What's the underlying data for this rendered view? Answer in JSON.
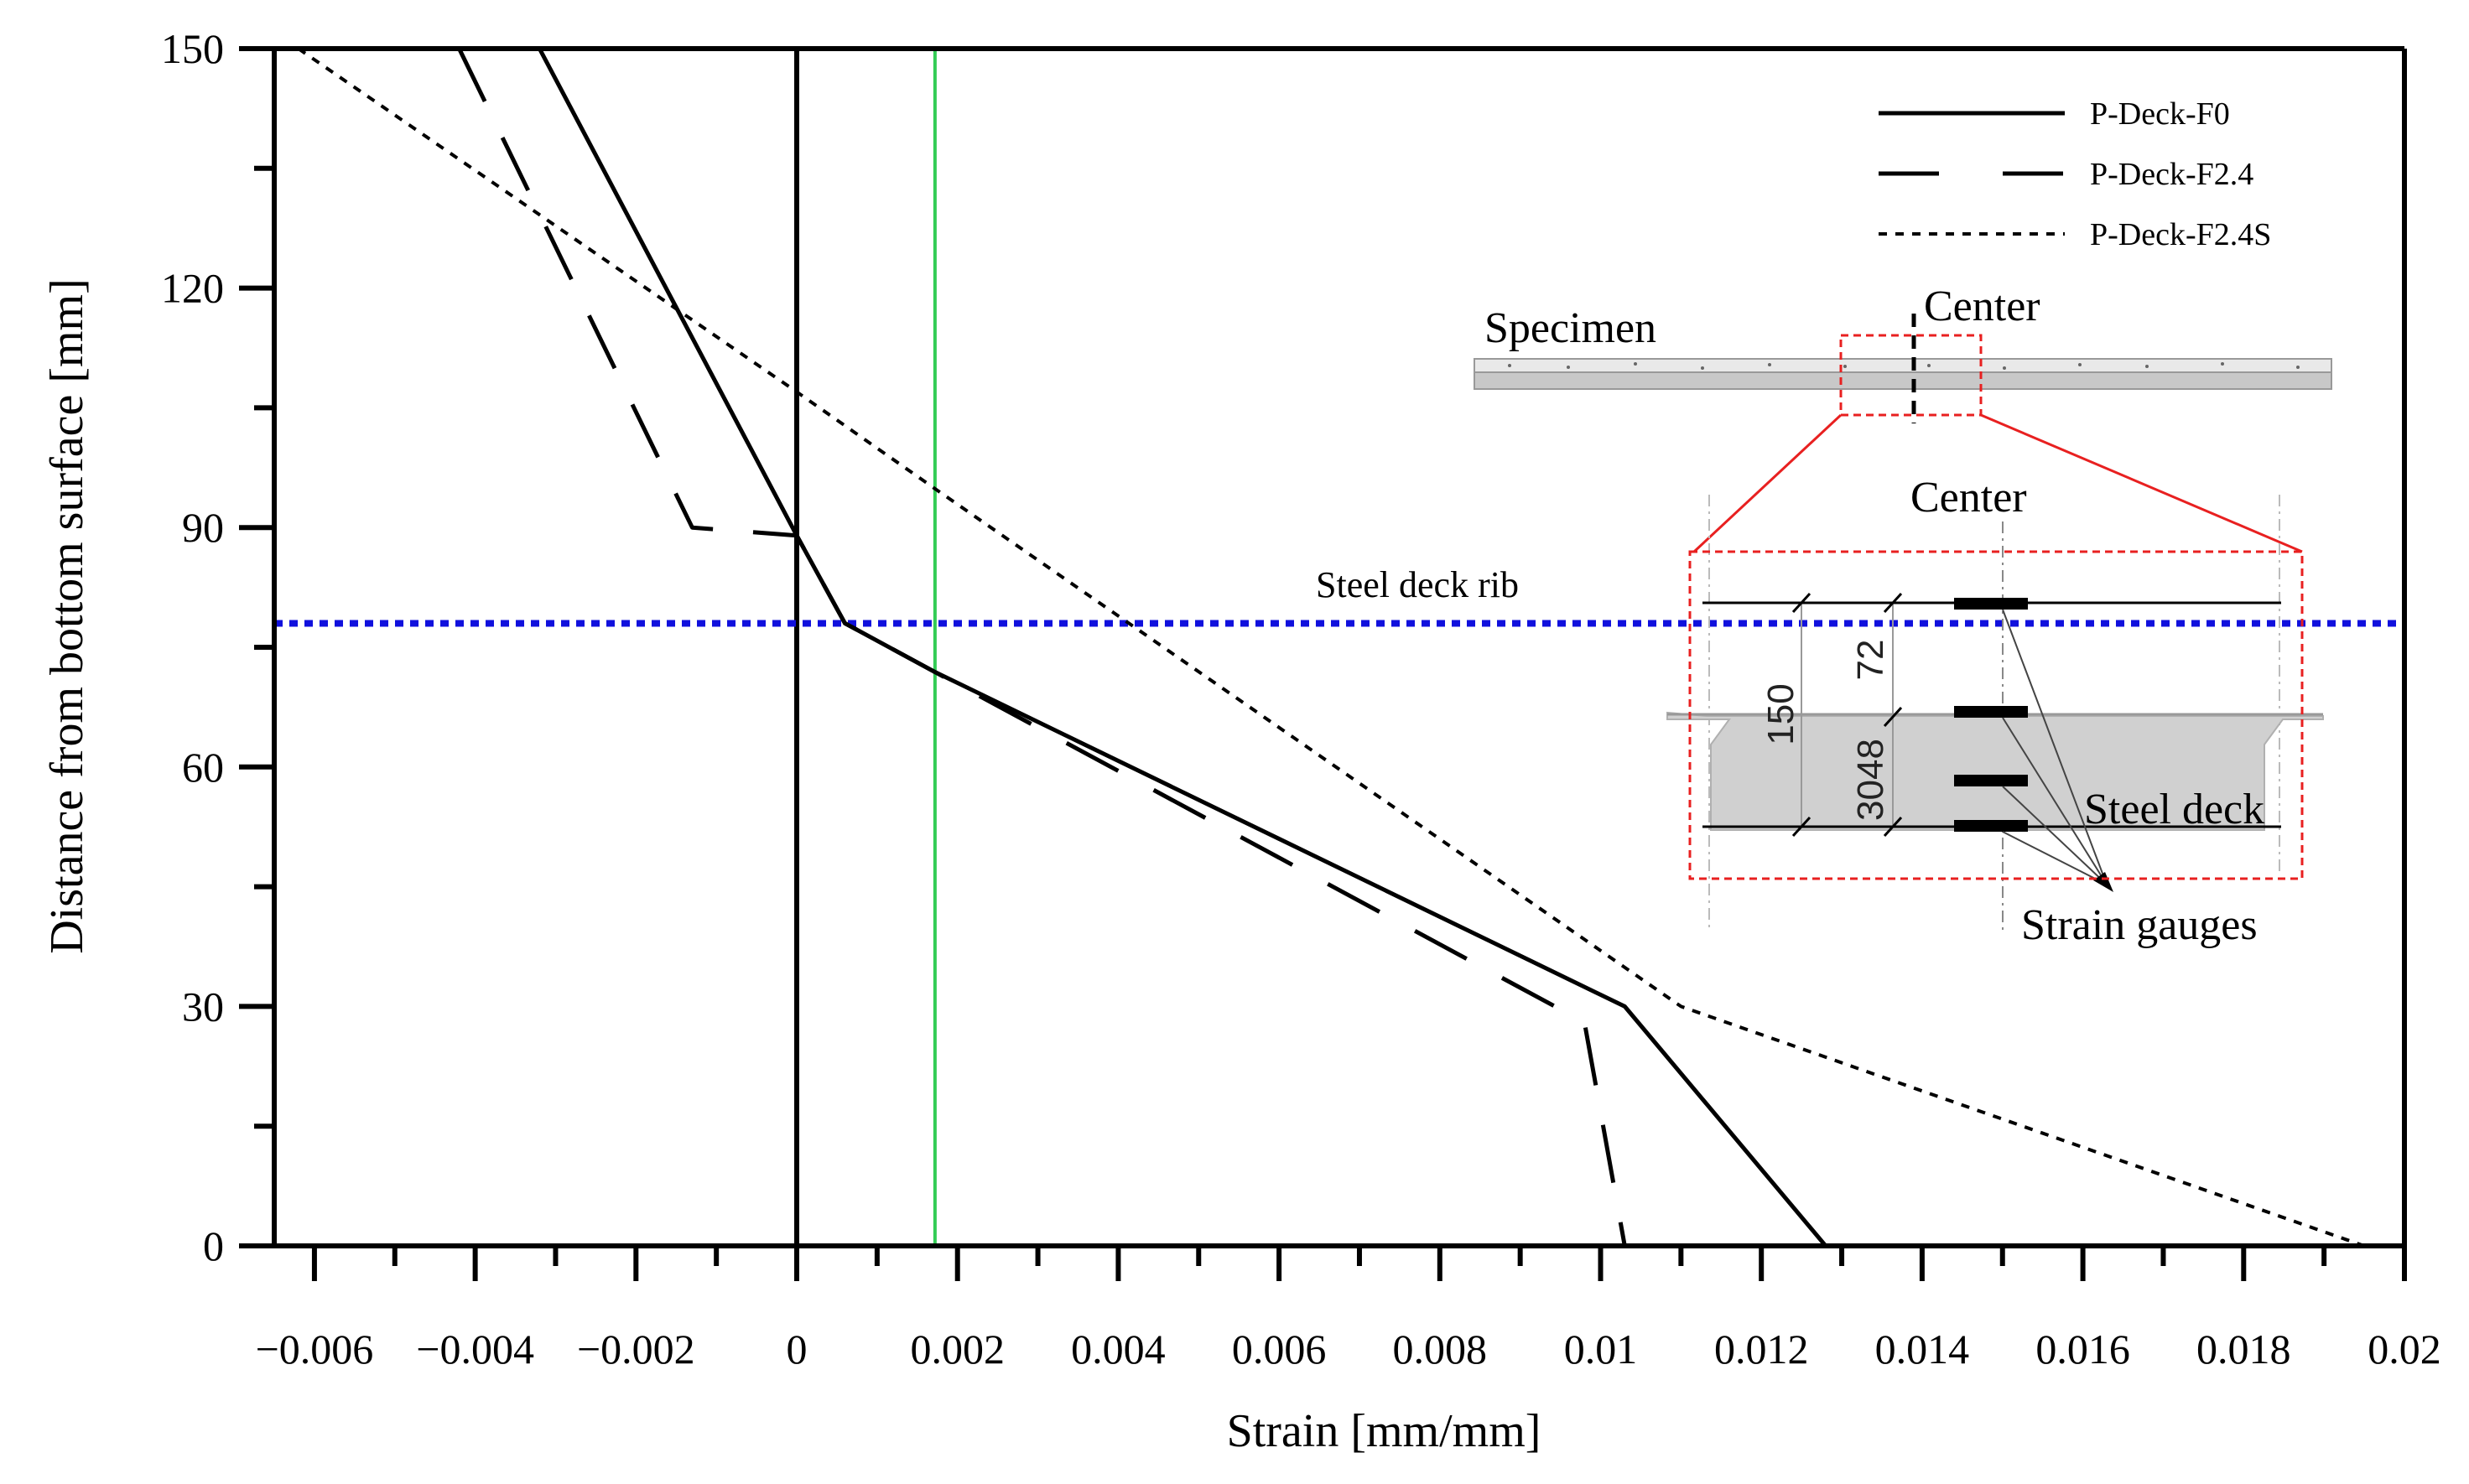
{
  "chart_data": {
    "type": "line",
    "title": "",
    "xlabel": "Strain [mm/mm]",
    "ylabel": "Distance from bottom surface [mm]",
    "xlim": [
      -0.0065,
      0.02
    ],
    "ylim": [
      0,
      150
    ],
    "x_ticks": [
      -0.006,
      -0.004,
      -0.002,
      0,
      0.002,
      0.004,
      0.006,
      0.008,
      0.01,
      0.012,
      0.014,
      0.016,
      0.018,
      0.02
    ],
    "x_tick_labels": [
      "−0.006",
      "−0.004",
      "−0.002",
      "0",
      "0.002",
      "0.004",
      "0.006",
      "0.008",
      "0.01",
      "0.012",
      "0.014",
      "0.016",
      "0.018",
      "0.02"
    ],
    "y_ticks": [
      0,
      30,
      60,
      90,
      120,
      150
    ],
    "y_tick_labels": [
      "0",
      "30",
      "60",
      "90",
      "120",
      "150"
    ],
    "series": [
      {
        "name": "P-Deck-F0",
        "style": "solid",
        "color": "#000000",
        "points": [
          [
            -0.0032,
            150
          ],
          [
            0,
            89
          ],
          [
            0.0006,
            78
          ],
          [
            0.0017,
            72
          ],
          [
            0.0103,
            30
          ],
          [
            0.0128,
            0
          ]
        ]
      },
      {
        "name": "P-Deck-F2.4",
        "style": "dashed",
        "color": "#000000",
        "points": [
          [
            -0.0042,
            150
          ],
          [
            -0.0013,
            90
          ],
          [
            0,
            89
          ],
          [
            0.0006,
            78
          ],
          [
            0.0017,
            72
          ],
          [
            0.0098,
            28
          ],
          [
            0.0103,
            0
          ]
        ]
      },
      {
        "name": "P-Deck-F2.4S",
        "style": "dotted",
        "color": "#000000",
        "points": [
          [
            -0.0062,
            150
          ],
          [
            0,
            107
          ],
          [
            0.0017,
            95
          ],
          [
            0.011,
            30
          ],
          [
            0.0195,
            0
          ]
        ]
      }
    ],
    "reference_lines": [
      {
        "orientation": "vertical",
        "x": 0,
        "color": "#000000",
        "style": "solid"
      },
      {
        "orientation": "vertical",
        "x": 0.00172,
        "color": "#33cc55",
        "style": "solid"
      },
      {
        "orientation": "horizontal",
        "y": 78,
        "color": "#1010dd",
        "style": "dotted",
        "label": "Steel deck rib"
      }
    ],
    "legend_position": "top-right",
    "annotations": {
      "specimen_label": "Specimen",
      "center_label_top": "Center",
      "center_label_detail": "Center",
      "steel_deck_label": "Steel deck",
      "strain_gauges_label": "Strain gauges",
      "dim_150": "150",
      "dim_72": "72",
      "dim_3048": "3048"
    }
  }
}
